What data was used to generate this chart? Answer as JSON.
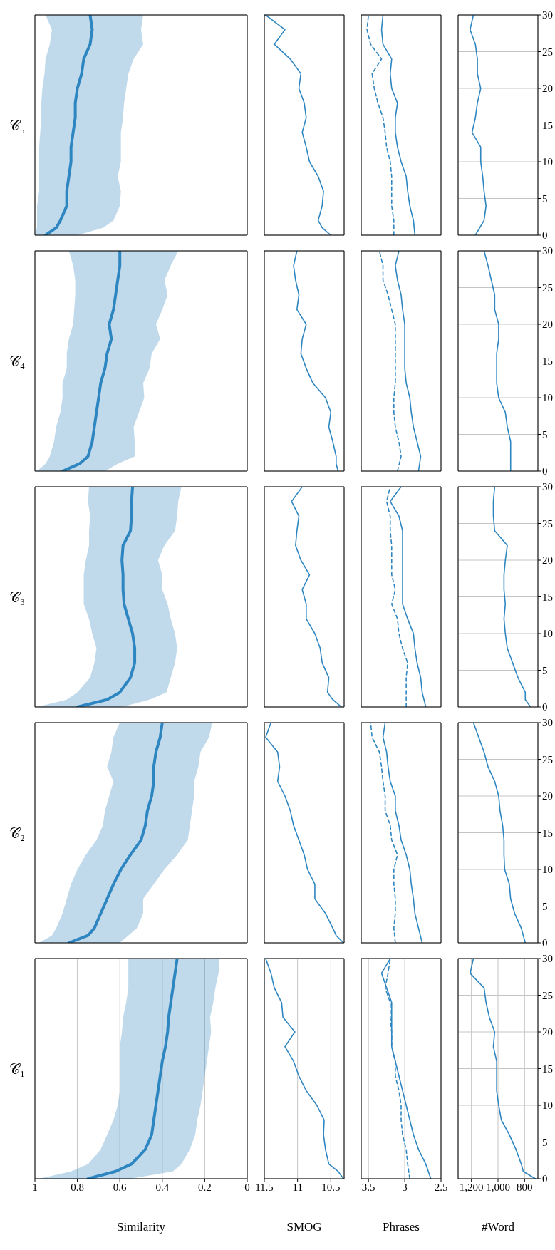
{
  "chart_data": [
    {
      "type": "line",
      "orientation": "horizontal",
      "title": "𝒞₁",
      "xlabel": "Similarity",
      "x": [
        0,
        1,
        2,
        4,
        6,
        8,
        10,
        12,
        14,
        16,
        18,
        20,
        22,
        24,
        26,
        28,
        30
      ],
      "ylim": [
        0,
        30
      ],
      "yticks": [
        0,
        5,
        10,
        15,
        20,
        25,
        30
      ],
      "xlim": [
        1,
        0
      ],
      "xticks": [
        0,
        0.2,
        0.4,
        0.6,
        0.8,
        1
      ],
      "grid": true,
      "tick_labels": "x",
      "series": [
        {
          "color": "#2e86c1",
          "values": [
            0.75,
            0.62,
            0.545,
            0.48,
            0.45,
            0.44,
            0.43,
            0.42,
            0.41,
            0.4,
            0.385,
            0.375,
            0.37,
            0.36,
            0.35,
            0.34,
            0.33
          ],
          "upper": [
            0.98,
            0.83,
            0.75,
            0.69,
            0.66,
            0.63,
            0.61,
            0.6,
            0.6,
            0.6,
            0.6,
            0.59,
            0.585,
            0.57,
            0.56,
            0.56,
            0.56
          ],
          "lower": [
            0.55,
            0.35,
            0.31,
            0.27,
            0.245,
            0.235,
            0.22,
            0.21,
            0.2,
            0.19,
            0.18,
            0.17,
            0.175,
            0.16,
            0.15,
            0.135,
            0.13
          ]
        }
      ]
    },
    {
      "type": "line",
      "orientation": "horizontal",
      "title": "𝒞₂",
      "x": [
        0,
        1,
        2,
        4,
        6,
        8,
        10,
        12,
        14,
        16,
        18,
        20,
        22,
        24,
        26,
        28,
        30
      ],
      "ylim": [
        0,
        30
      ],
      "yticks": [
        0,
        5,
        10,
        15,
        20,
        25,
        30
      ],
      "xlim": [
        1,
        0
      ],
      "xticks": [
        0,
        0.2,
        0.4,
        0.6,
        0.8,
        1
      ],
      "grid": true,
      "tick_labels": false,
      "series": [
        {
          "color": "#2e86c1",
          "values": [
            0.84,
            0.75,
            0.72,
            0.69,
            0.66,
            0.63,
            0.595,
            0.55,
            0.5,
            0.48,
            0.47,
            0.45,
            0.44,
            0.44,
            0.43,
            0.41,
            0.4
          ],
          "upper": [
            0.98,
            0.92,
            0.9,
            0.87,
            0.85,
            0.83,
            0.8,
            0.76,
            0.71,
            0.68,
            0.67,
            0.65,
            0.63,
            0.66,
            0.64,
            0.63,
            0.6
          ],
          "lower": [
            0.6,
            0.56,
            0.52,
            0.49,
            0.49,
            0.44,
            0.39,
            0.33,
            0.28,
            0.27,
            0.26,
            0.25,
            0.25,
            0.23,
            0.22,
            0.18,
            0.165
          ]
        }
      ]
    },
    {
      "type": "line",
      "orientation": "horizontal",
      "title": "𝒞₃",
      "x": [
        0,
        1,
        2,
        4,
        6,
        8,
        10,
        12,
        14,
        16,
        18,
        20,
        22,
        24,
        26,
        28,
        30
      ],
      "ylim": [
        0,
        30
      ],
      "yticks": [
        0,
        5,
        10,
        15,
        20,
        25,
        30
      ],
      "xlim": [
        1,
        0
      ],
      "xticks": [
        0,
        0.2,
        0.4,
        0.6,
        0.8,
        1
      ],
      "grid": true,
      "tick_labels": false,
      "series": [
        {
          "color": "#2e86c1",
          "values": [
            0.8,
            0.66,
            0.6,
            0.55,
            0.53,
            0.53,
            0.54,
            0.56,
            0.58,
            0.585,
            0.585,
            0.59,
            0.585,
            0.55,
            0.545,
            0.545,
            0.54
          ],
          "upper": [
            0.99,
            0.85,
            0.8,
            0.74,
            0.72,
            0.71,
            0.73,
            0.745,
            0.77,
            0.77,
            0.77,
            0.76,
            0.745,
            0.745,
            0.74,
            0.75,
            0.745
          ],
          "lower": [
            0.59,
            0.46,
            0.38,
            0.36,
            0.34,
            0.33,
            0.34,
            0.36,
            0.375,
            0.4,
            0.4,
            0.42,
            0.39,
            0.34,
            0.33,
            0.325,
            0.31
          ]
        }
      ]
    },
    {
      "type": "line",
      "orientation": "horizontal",
      "title": "𝒞₄",
      "x": [
        0,
        1,
        2,
        4,
        6,
        8,
        10,
        12,
        14,
        16,
        18,
        20,
        22,
        24,
        26,
        28,
        30
      ],
      "ylim": [
        0,
        30
      ],
      "yticks": [
        0,
        5,
        10,
        15,
        20,
        25,
        30
      ],
      "xlim": [
        1,
        0
      ],
      "xticks": [
        0,
        0.2,
        0.4,
        0.6,
        0.8,
        1
      ],
      "grid": true,
      "tick_labels": false,
      "series": [
        {
          "color": "#2e86c1",
          "values": [
            0.87,
            0.79,
            0.75,
            0.73,
            0.72,
            0.71,
            0.7,
            0.69,
            0.67,
            0.66,
            0.64,
            0.65,
            0.63,
            0.62,
            0.61,
            0.6,
            0.6
          ],
          "upper": [
            0.99,
            0.95,
            0.93,
            0.91,
            0.9,
            0.88,
            0.87,
            0.87,
            0.85,
            0.85,
            0.84,
            0.82,
            0.815,
            0.81,
            0.81,
            0.82,
            0.84
          ],
          "lower": [
            0.67,
            0.61,
            0.53,
            0.53,
            0.535,
            0.51,
            0.485,
            0.49,
            0.46,
            0.45,
            0.41,
            0.43,
            0.4,
            0.375,
            0.39,
            0.36,
            0.325
          ]
        }
      ]
    },
    {
      "type": "line",
      "orientation": "horizontal",
      "title": "𝒞₅",
      "x": [
        0,
        1,
        2,
        4,
        6,
        8,
        10,
        12,
        14,
        16,
        18,
        20,
        22,
        24,
        26,
        28,
        30
      ],
      "ylim": [
        0,
        30
      ],
      "yticks": [
        0,
        5,
        10,
        15,
        20,
        25,
        30
      ],
      "xlim": [
        1,
        0
      ],
      "xticks": [
        0,
        0.2,
        0.4,
        0.6,
        0.8,
        1
      ],
      "grid": true,
      "tick_labels": false,
      "series": [
        {
          "color": "#2e86c1",
          "values": [
            0.95,
            0.9,
            0.88,
            0.85,
            0.85,
            0.84,
            0.83,
            0.83,
            0.82,
            0.81,
            0.81,
            0.8,
            0.78,
            0.77,
            0.74,
            0.73,
            0.74
          ],
          "upper": [
            1.0,
            0.99,
            0.99,
            0.99,
            0.98,
            0.98,
            0.98,
            0.98,
            0.975,
            0.97,
            0.97,
            0.965,
            0.955,
            0.95,
            0.93,
            0.92,
            0.95
          ],
          "lower": [
            0.8,
            0.68,
            0.63,
            0.6,
            0.595,
            0.61,
            0.595,
            0.595,
            0.595,
            0.585,
            0.58,
            0.57,
            0.56,
            0.535,
            0.49,
            0.5,
            0.49
          ]
        }
      ]
    },
    {
      "type": "line",
      "orientation": "horizontal",
      "xlabel": "SMOG",
      "x": [
        0,
        1,
        2,
        4,
        6,
        8,
        10,
        12,
        14,
        16,
        18,
        20,
        22,
        24,
        26,
        28,
        30
      ],
      "ylim": [
        0,
        30
      ],
      "yticks": [
        0,
        5,
        10,
        15,
        20,
        25,
        30
      ],
      "xlim": [
        11.5,
        10.3
      ],
      "xticks": [
        10.5,
        11,
        11.5
      ],
      "grid": true,
      "tick_labels": "x",
      "series": [
        {
          "color": "#2e86c1",
          "values": [
            10.31,
            10.39,
            10.53,
            10.58,
            10.61,
            10.6,
            10.71,
            10.87,
            10.98,
            11.06,
            11.19,
            11.04,
            11.22,
            11.24,
            11.35,
            11.4,
            11.48
          ]
        }
      ]
    },
    {
      "type": "line",
      "orientation": "horizontal",
      "x": [
        0,
        1,
        2,
        4,
        6,
        8,
        10,
        12,
        14,
        16,
        18,
        20,
        22,
        24,
        26,
        28,
        30
      ],
      "ylim": [
        0,
        30
      ],
      "yticks": [
        0,
        5,
        10,
        15,
        20,
        25,
        30
      ],
      "xlim": [
        11.5,
        10.3
      ],
      "xticks": [
        10.5,
        11,
        11.5
      ],
      "grid": true,
      "tick_labels": false,
      "series": [
        {
          "color": "#2e86c1",
          "values": [
            10.31,
            10.42,
            10.47,
            10.58,
            10.74,
            10.74,
            10.85,
            10.9,
            10.98,
            11.06,
            11.11,
            11.19,
            11.3,
            11.27,
            11.3,
            11.48,
            11.4
          ]
        }
      ]
    },
    {
      "type": "line",
      "orientation": "horizontal",
      "x": [
        0,
        1,
        2,
        4,
        6,
        8,
        10,
        12,
        14,
        16,
        18,
        20,
        22,
        24,
        26,
        28,
        30
      ],
      "ylim": [
        0,
        30
      ],
      "yticks": [
        0,
        5,
        10,
        15,
        20,
        25,
        30
      ],
      "xlim": [
        11.5,
        10.3
      ],
      "xticks": [
        10.5,
        11,
        11.5
      ],
      "grid": true,
      "tick_labels": false,
      "series": [
        {
          "color": "#2e86c1",
          "values": [
            10.34,
            10.47,
            10.55,
            10.53,
            10.63,
            10.66,
            10.74,
            10.87,
            10.87,
            10.93,
            10.82,
            10.95,
            11.03,
            11.01,
            10.98,
            11.09,
            10.93
          ]
        }
      ]
    },
    {
      "type": "line",
      "orientation": "horizontal",
      "x": [
        0,
        1,
        2,
        4,
        6,
        8,
        10,
        12,
        14,
        16,
        18,
        20,
        22,
        24,
        26,
        28,
        30
      ],
      "ylim": [
        0,
        30
      ],
      "yticks": [
        0,
        5,
        10,
        15,
        20,
        25,
        30
      ],
      "xlim": [
        11.5,
        10.3
      ],
      "xticks": [
        10.5,
        11,
        11.5
      ],
      "grid": true,
      "tick_labels": false,
      "series": [
        {
          "color": "#2e86c1",
          "values": [
            10.39,
            10.42,
            10.42,
            10.47,
            10.53,
            10.5,
            10.58,
            10.77,
            10.87,
            10.95,
            10.93,
            10.87,
            11.01,
            10.98,
            11.03,
            11.06,
            11.01
          ]
        }
      ]
    },
    {
      "type": "line",
      "orientation": "horizontal",
      "x": [
        0,
        1,
        2,
        4,
        6,
        8,
        10,
        12,
        14,
        16,
        18,
        20,
        22,
        24,
        26,
        28,
        30
      ],
      "ylim": [
        0,
        30
      ],
      "yticks": [
        0,
        5,
        10,
        15,
        20,
        25,
        30
      ],
      "xlim": [
        11.5,
        10.3
      ],
      "xticks": [
        10.5,
        11,
        11.5
      ],
      "grid": true,
      "tick_labels": false,
      "series": [
        {
          "color": "#2e86c1",
          "values": [
            10.5,
            10.63,
            10.69,
            10.63,
            10.61,
            10.69,
            10.82,
            10.87,
            10.93,
            10.87,
            10.9,
            10.98,
            10.95,
            11.11,
            11.35,
            11.19,
            11.48
          ]
        }
      ]
    },
    {
      "type": "line",
      "orientation": "horizontal",
      "xlabel": "Phrases",
      "x": [
        0,
        2,
        4,
        6,
        8,
        10,
        12,
        14,
        16,
        18,
        20,
        22,
        24,
        26,
        28,
        30
      ],
      "ylim": [
        0,
        30
      ],
      "yticks": [
        0,
        5,
        10,
        15,
        20,
        25,
        30
      ],
      "xlim": [
        3.6,
        2.5
      ],
      "xticks": [
        2.5,
        3,
        3.5
      ],
      "grid": true,
      "tick_labels": "x",
      "series": [
        {
          "color": "#2e86c1",
          "values": [
            2.64,
            2.71,
            2.81,
            2.88,
            2.93,
            2.98,
            3.03,
            3.08,
            3.13,
            3.18,
            3.18,
            3.18,
            3.18,
            3.25,
            3.32,
            3.2
          ]
        },
        {
          "color": "#2e86c1",
          "line_style": "dashed",
          "values": [
            2.93,
            2.96,
            2.98,
            3.03,
            3.05,
            3.05,
            3.08,
            3.13,
            3.13,
            3.18,
            3.18,
            3.2,
            3.2,
            3.27,
            3.23,
            3.2
          ]
        }
      ]
    },
    {
      "type": "line",
      "orientation": "horizontal",
      "x": [
        0,
        2,
        4,
        6,
        8,
        10,
        12,
        14,
        16,
        18,
        20,
        22,
        24,
        26,
        28,
        30
      ],
      "ylim": [
        0,
        30
      ],
      "yticks": [
        0,
        5,
        10,
        15,
        20,
        25,
        30
      ],
      "xlim": [
        3.6,
        2.5
      ],
      "xticks": [
        2.5,
        3,
        3.5
      ],
      "grid": true,
      "tick_labels": false,
      "series": [
        {
          "color": "#2e86c1",
          "values": [
            2.76,
            2.81,
            2.86,
            2.88,
            2.91,
            2.93,
            2.98,
            3.05,
            3.08,
            3.13,
            3.13,
            3.2,
            3.23,
            3.25,
            3.3,
            3.27
          ]
        },
        {
          "color": "#2e86c1",
          "line_style": "dashed",
          "values": [
            3.13,
            3.15,
            3.13,
            3.13,
            3.15,
            3.15,
            3.1,
            3.18,
            3.2,
            3.27,
            3.27,
            3.3,
            3.32,
            3.35,
            3.45,
            3.47
          ]
        }
      ]
    },
    {
      "type": "line",
      "orientation": "horizontal",
      "x": [
        0,
        2,
        4,
        6,
        8,
        10,
        12,
        14,
        16,
        18,
        20,
        22,
        24,
        26,
        28,
        30
      ],
      "ylim": [
        0,
        30
      ],
      "yticks": [
        0,
        5,
        10,
        15,
        20,
        25,
        30
      ],
      "xlim": [
        3.6,
        2.5
      ],
      "xticks": [
        2.5,
        3,
        3.5
      ],
      "grid": true,
      "tick_labels": false,
      "series": [
        {
          "color": "#2e86c1",
          "values": [
            2.71,
            2.76,
            2.78,
            2.83,
            2.86,
            2.88,
            2.96,
            3.03,
            3.03,
            3.03,
            3.03,
            3.03,
            3.03,
            3.08,
            3.2,
            3.05
          ]
        },
        {
          "color": "#2e86c1",
          "line_style": "dashed",
          "values": [
            2.98,
            2.98,
            2.98,
            2.96,
            3.03,
            3.08,
            3.1,
            3.18,
            3.13,
            3.18,
            3.18,
            3.18,
            3.2,
            3.2,
            3.25,
            3.2
          ]
        }
      ]
    },
    {
      "type": "line",
      "orientation": "horizontal",
      "x": [
        0,
        2,
        4,
        6,
        8,
        10,
        12,
        14,
        16,
        18,
        20,
        22,
        24,
        26,
        28,
        30
      ],
      "ylim": [
        0,
        30
      ],
      "yticks": [
        0,
        5,
        10,
        15,
        20,
        25,
        30
      ],
      "xlim": [
        3.6,
        2.5
      ],
      "xticks": [
        2.5,
        3,
        3.5
      ],
      "grid": true,
      "tick_labels": false,
      "series": [
        {
          "color": "#2e86c1",
          "values": [
            2.81,
            2.78,
            2.83,
            2.88,
            2.91,
            2.93,
            2.98,
            3.0,
            3.0,
            3.0,
            3.0,
            3.03,
            3.05,
            3.1,
            3.13,
            3.08
          ]
        },
        {
          "color": "#2e86c1",
          "line_style": "dashed",
          "values": [
            3.1,
            3.05,
            3.08,
            3.13,
            3.15,
            3.15,
            3.13,
            3.13,
            3.13,
            3.13,
            3.13,
            3.18,
            3.23,
            3.3,
            3.3,
            3.35
          ]
        }
      ]
    },
    {
      "type": "line",
      "orientation": "horizontal",
      "x": [
        0,
        2,
        4,
        6,
        8,
        10,
        12,
        14,
        16,
        18,
        20,
        22,
        24,
        26,
        28,
        30
      ],
      "ylim": [
        0,
        30
      ],
      "yticks": [
        0,
        5,
        10,
        15,
        20,
        25,
        30
      ],
      "xlim": [
        3.6,
        2.5
      ],
      "xticks": [
        2.5,
        3,
        3.5
      ],
      "grid": true,
      "tick_labels": false,
      "series": [
        {
          "color": "#2e86c1",
          "values": [
            2.86,
            2.88,
            2.93,
            2.96,
            2.98,
            3.05,
            3.1,
            3.13,
            3.13,
            3.1,
            3.18,
            3.2,
            3.18,
            3.3,
            3.32,
            3.3
          ]
        },
        {
          "color": "#2e86c1",
          "line_style": "dashed",
          "values": [
            3.15,
            3.15,
            3.18,
            3.18,
            3.18,
            3.2,
            3.25,
            3.27,
            3.3,
            3.37,
            3.42,
            3.45,
            3.32,
            3.47,
            3.52,
            3.5
          ]
        }
      ]
    },
    {
      "type": "line",
      "orientation": "horizontal",
      "xlabel": "#Word",
      "x": [
        0,
        1,
        2,
        4,
        6,
        8,
        10,
        12,
        14,
        16,
        18,
        20,
        22,
        24,
        26,
        28,
        30
      ],
      "ylim": [
        0,
        30
      ],
      "yticks": [
        0,
        5,
        10,
        15,
        20,
        25,
        30
      ],
      "xlim": [
        1300,
        700
      ],
      "xticks": [
        800,
        {
          "value": 1000,
          "label": "1,000"
        },
        {
          "value": 1200,
          "label": "1,200"
        }
      ],
      "grid": true,
      "series": [
        {
          "color": "#2e86c1",
          "values": [
            720,
            810,
            825,
            865,
            915,
            975,
            995,
            1010,
            1010,
            1010,
            1035,
            1025,
            1065,
            1090,
            1105,
            1210,
            1185
          ]
        }
      ]
    },
    {
      "type": "line",
      "orientation": "horizontal",
      "x": [
        0,
        2,
        4,
        6,
        8,
        10,
        12,
        14,
        16,
        18,
        20,
        22,
        24,
        26,
        28,
        30
      ],
      "ylim": [
        0,
        30
      ],
      "yticks": [
        0,
        5,
        10,
        15,
        20,
        25,
        30
      ],
      "xlim": [
        1300,
        700
      ],
      "xticks": [
        800,
        1000,
        1200
      ],
      "grid": true,
      "tick_labels": "y",
      "series": [
        {
          "color": "#2e86c1",
          "values": [
            795,
            825,
            875,
            905,
            915,
            950,
            955,
            955,
            965,
            985,
            995,
            1025,
            1075,
            1105,
            1145,
            1185
          ]
        }
      ]
    },
    {
      "type": "line",
      "orientation": "horizontal",
      "x": [
        0,
        1,
        2,
        4,
        6,
        8,
        10,
        12,
        14,
        16,
        18,
        20,
        22,
        24,
        26,
        28,
        30
      ],
      "ylim": [
        0,
        30
      ],
      "yticks": [
        0,
        5,
        10,
        15,
        20,
        25,
        30
      ],
      "xlim": [
        1300,
        700
      ],
      "xticks": [
        800,
        1000,
        1200
      ],
      "grid": true,
      "tick_labels": "y",
      "series": [
        {
          "color": "#2e86c1",
          "values": [
            755,
            795,
            795,
            850,
            890,
            930,
            945,
            955,
            945,
            955,
            955,
            945,
            930,
            1025,
            1035,
            1035,
            1025
          ]
        }
      ]
    },
    {
      "type": "line",
      "orientation": "horizontal",
      "x": [
        0,
        2,
        4,
        6,
        8,
        10,
        12,
        14,
        16,
        18,
        20,
        22,
        24,
        26,
        28,
        30
      ],
      "ylim": [
        0,
        30
      ],
      "yticks": [
        0,
        5,
        10,
        15,
        20,
        25,
        30
      ],
      "xlim": [
        1300,
        700
      ],
      "xticks": [
        800,
        1000,
        1200
      ],
      "grid": true,
      "tick_labels": "y",
      "series": [
        {
          "color": "#2e86c1",
          "values": [
            905,
            905,
            905,
            930,
            945,
            995,
            1010,
            1010,
            1010,
            995,
            995,
            1025,
            1025,
            1050,
            1075,
            1105
          ]
        }
      ]
    },
    {
      "type": "line",
      "orientation": "horizontal",
      "x": [
        0,
        2,
        4,
        6,
        8,
        10,
        12,
        14,
        16,
        18,
        20,
        22,
        24,
        26,
        28,
        30
      ],
      "ylim": [
        0,
        30
      ],
      "yticks": [
        0,
        5,
        10,
        15,
        20,
        25,
        30
      ],
      "xlim": [
        1300,
        700
      ],
      "xticks": [
        800,
        1000,
        1200
      ],
      "grid": true,
      "tick_labels": "y",
      "series": [
        {
          "color": "#2e86c1",
          "values": [
            1170,
            1105,
            1090,
            1105,
            1115,
            1130,
            1130,
            1195,
            1170,
            1155,
            1130,
            1155,
            1155,
            1170,
            1210,
            1185
          ]
        }
      ]
    }
  ]
}
